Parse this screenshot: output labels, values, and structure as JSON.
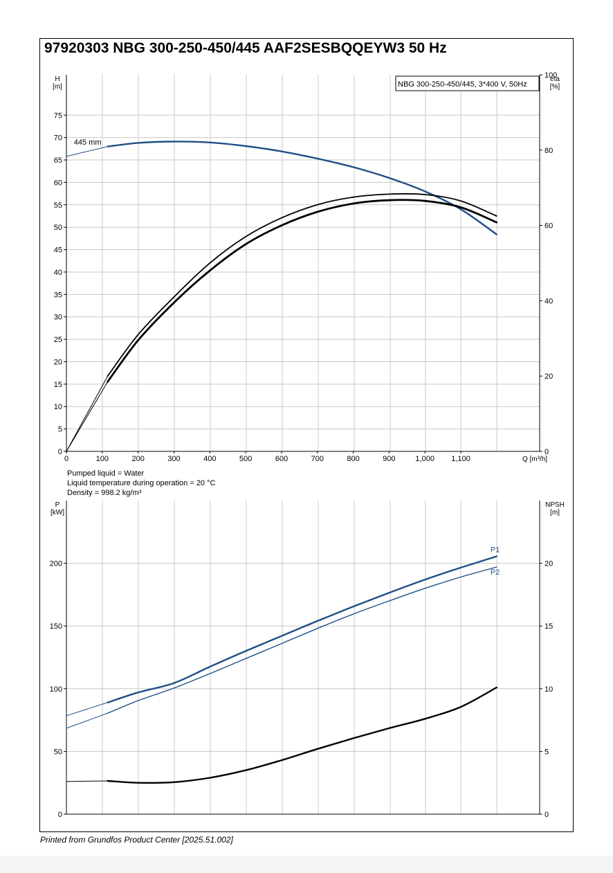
{
  "header": {
    "title": "97920303 NBG 300-250-450/445 AAF2SESBQQEYW3 50 Hz"
  },
  "footer": {
    "text": "Printed from Grundfos Product Center [2025.51.002]"
  },
  "liquid_info": {
    "line1": "Pumped liquid = Water",
    "line2": "Liquid temperature during operation = 20 °C",
    "line3": "Density = 998.2 kg/m³"
  },
  "colors": {
    "blue": "#1f4e85",
    "black": "#000000",
    "grid": "#c8c8c8"
  },
  "chart_data": [
    {
      "type": "line",
      "name": "head-efficiency",
      "legend_box": "NBG 300-250-450/445, 3*400 V, 50Hz",
      "xlabel": "Q [m³/h]",
      "ylabel_left": "H\n[m]",
      "ylabel_right": "eta\n[%]",
      "x_ticks": [
        "0",
        "100",
        "200",
        "300",
        "400",
        "500",
        "600",
        "700",
        "800",
        "900",
        "1,000",
        "1,100"
      ],
      "x_tick_values": [
        0,
        100,
        200,
        300,
        400,
        500,
        600,
        700,
        800,
        900,
        1000,
        1100
      ],
      "y_left_ticks": [
        "0",
        "5",
        "10",
        "15",
        "20",
        "25",
        "30",
        "35",
        "40",
        "45",
        "50",
        "55",
        "60",
        "65",
        "70",
        "75"
      ],
      "y_left_tick_values": [
        0,
        5,
        10,
        15,
        20,
        25,
        30,
        35,
        40,
        45,
        50,
        55,
        60,
        65,
        70,
        75
      ],
      "y_right_ticks": [
        "0",
        "20",
        "40",
        "60",
        "80",
        "100"
      ],
      "y_right_tick_values": [
        0,
        20,
        40,
        60,
        80,
        100
      ],
      "xlim": [
        0,
        1320
      ],
      "ylim_left": [
        0,
        84
      ],
      "ylim_right": [
        0,
        100
      ],
      "grid": true,
      "annotations": [
        {
          "text": "445 mm",
          "x": 15,
          "y": 69
        }
      ],
      "series": [
        {
          "label": "445 mm",
          "axis": "left",
          "color": "blue",
          "width": 2.4,
          "thin_segment": [
            [
              0,
              65.8
            ],
            [
              115,
              68.0
            ]
          ],
          "points": [
            [
              115,
              68.0
            ],
            [
              200,
              68.8
            ],
            [
              300,
              69.1
            ],
            [
              400,
              68.9
            ],
            [
              500,
              68.1
            ],
            [
              600,
              66.9
            ],
            [
              700,
              65.3
            ],
            [
              800,
              63.4
            ],
            [
              900,
              61.0
            ],
            [
              1000,
              58.0
            ],
            [
              1100,
              54.0
            ],
            [
              1200,
              48.4
            ]
          ]
        },
        {
          "axis": "right",
          "color": "black",
          "width": 1.8,
          "thin_segment": [
            [
              0,
              0
            ],
            [
              115,
              20
            ]
          ],
          "points": [
            [
              115,
              20
            ],
            [
              200,
              31
            ],
            [
              300,
              41
            ],
            [
              400,
              50
            ],
            [
              500,
              57
            ],
            [
              600,
              62
            ],
            [
              700,
              65.5
            ],
            [
              800,
              67.5
            ],
            [
              900,
              68.3
            ],
            [
              1000,
              68.2
            ],
            [
              1100,
              66.5
            ],
            [
              1200,
              62.5
            ]
          ]
        },
        {
          "axis": "right",
          "color": "black",
          "width": 2.8,
          "thin_segment": [
            [
              0,
              0
            ],
            [
              115,
              18.5
            ]
          ],
          "points": [
            [
              115,
              18.5
            ],
            [
              200,
              29.5
            ],
            [
              300,
              39.5
            ],
            [
              400,
              48
            ],
            [
              500,
              55
            ],
            [
              600,
              60
            ],
            [
              700,
              63.6
            ],
            [
              800,
              65.8
            ],
            [
              900,
              66.7
            ],
            [
              1000,
              66.5
            ],
            [
              1100,
              64.8
            ],
            [
              1200,
              60.8
            ]
          ]
        }
      ]
    },
    {
      "type": "line",
      "name": "power-npsh",
      "xlabel": "",
      "ylabel_left": "P\n[kW]",
      "ylabel_right": "NPSH\n[m]",
      "y_left_ticks": [
        "0",
        "50",
        "100",
        "150",
        "200"
      ],
      "y_left_tick_values": [
        0,
        50,
        100,
        150,
        200
      ],
      "y_right_ticks": [
        "0",
        "5",
        "10",
        "15",
        "20"
      ],
      "y_right_tick_values": [
        0,
        5,
        10,
        15,
        20
      ],
      "xlim": [
        0,
        1320
      ],
      "ylim_left": [
        0,
        250
      ],
      "ylim_right": [
        0,
        25
      ],
      "grid": true,
      "series": [
        {
          "label": "P1",
          "axis": "left",
          "color": "blue",
          "width": 2.4,
          "thin_segment": [
            [
              0,
              78.5
            ],
            [
              115,
              89
            ]
          ],
          "points": [
            [
              115,
              89
            ],
            [
              200,
              97
            ],
            [
              300,
              104.5
            ],
            [
              400,
              117.5
            ],
            [
              500,
              130
            ],
            [
              600,
              142
            ],
            [
              700,
              154
            ],
            [
              800,
              165.5
            ],
            [
              900,
              176.5
            ],
            [
              1000,
              187
            ],
            [
              1100,
              196.5
            ],
            [
              1200,
              205.5
            ]
          ]
        },
        {
          "label": "P2",
          "axis": "left",
          "color": "blue",
          "width": 1.4,
          "thin_segment": [
            [
              0,
              68.5
            ],
            [
              115,
              80.5
            ]
          ],
          "points": [
            [
              115,
              80.5
            ],
            [
              200,
              90.5
            ],
            [
              300,
              100.5
            ],
            [
              400,
              112
            ],
            [
              500,
              124
            ],
            [
              600,
              136
            ],
            [
              700,
              148
            ],
            [
              800,
              159.5
            ],
            [
              900,
              170
            ],
            [
              1000,
              180
            ],
            [
              1100,
              189
            ],
            [
              1200,
              197
            ]
          ]
        },
        {
          "axis": "right",
          "color": "black",
          "width": 2.4,
          "thin_segment": [
            [
              0,
              2.6
            ],
            [
              115,
              2.65
            ]
          ],
          "points": [
            [
              115,
              2.65
            ],
            [
              200,
              2.5
            ],
            [
              300,
              2.55
            ],
            [
              400,
              2.9
            ],
            [
              500,
              3.5
            ],
            [
              600,
              4.3
            ],
            [
              700,
              5.2
            ],
            [
              800,
              6.05
            ],
            [
              900,
              6.85
            ],
            [
              1000,
              7.6
            ],
            [
              1100,
              8.55
            ],
            [
              1200,
              10.1
            ]
          ]
        }
      ]
    }
  ]
}
